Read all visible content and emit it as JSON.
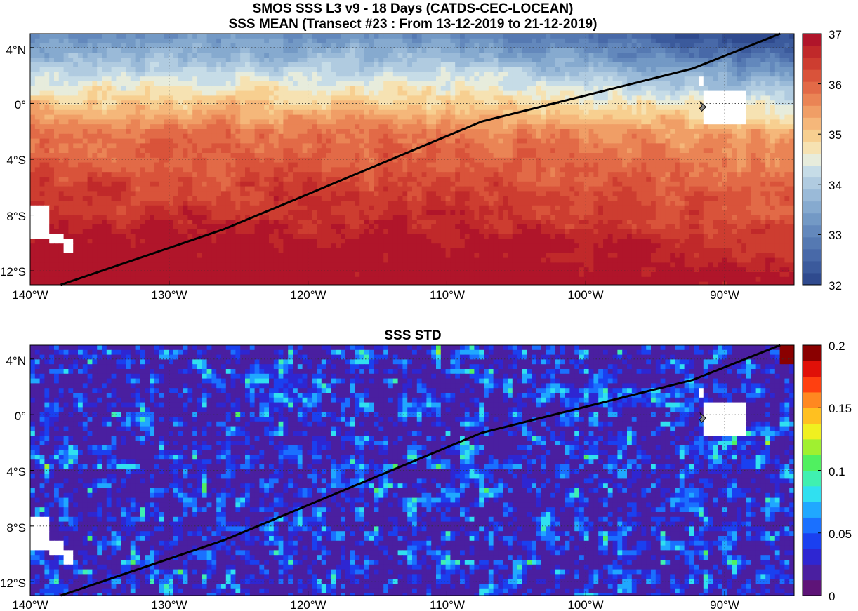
{
  "chart_data": [
    {
      "type": "heatmap",
      "title": "SMOS SSS L3 v9 - 18 Days (CATDS-CEC-LOCEAN)",
      "subtitle": "SSS MEAN (Transect #23 : From 13-12-2019 to 21-12-2019)",
      "xlim": [
        -140,
        -85
      ],
      "ylim": [
        -13,
        5
      ],
      "x_ticks": [
        -140,
        -130,
        -120,
        -110,
        -100,
        -90
      ],
      "x_tick_labels": [
        "140°W",
        "130°W",
        "120°W",
        "110°W",
        "100°W",
        "90°W"
      ],
      "y_ticks": [
        4,
        0,
        -4,
        -8,
        -12
      ],
      "y_tick_labels": [
        "4°N",
        "0°",
        "4°S",
        "8°S",
        "12°S"
      ],
      "grid": true,
      "colorbar": {
        "min": 32,
        "max": 37,
        "ticks": [
          32,
          33,
          34,
          35,
          36,
          37
        ],
        "tick_labels": [
          "32",
          "33",
          "34",
          "35",
          "36",
          "37"
        ],
        "colors": [
          "#2f4a8e",
          "#3b5a9c",
          "#4869a8",
          "#5579b2",
          "#6388bc",
          "#7399c5",
          "#86aacf",
          "#9abad8",
          "#b0cbe0",
          "#c6dce7",
          "#e7ecdc",
          "#f6e2b2",
          "#f7cf90",
          "#f5b77a",
          "#f09e66",
          "#ea8455",
          "#e26a47",
          "#d9533a",
          "#cd3d30",
          "#c0292a",
          "#b0152a"
        ]
      },
      "transect": [
        [
          -137.8,
          -13
        ],
        [
          -126,
          -9
        ],
        [
          -107.5,
          -1.3
        ],
        [
          -92.3,
          2.5
        ],
        [
          -86,
          5
        ]
      ]
    },
    {
      "type": "heatmap",
      "title": "SSS STD",
      "xlim": [
        -140,
        -85
      ],
      "ylim": [
        -13,
        5
      ],
      "x_ticks": [
        -140,
        -130,
        -120,
        -110,
        -100,
        -90
      ],
      "x_tick_labels": [
        "140°W",
        "130°W",
        "120°W",
        "110°W",
        "100°W",
        "90°W"
      ],
      "y_ticks": [
        4,
        0,
        -4,
        -8,
        -12
      ],
      "y_tick_labels": [
        "4°N",
        "0°",
        "4°S",
        "8°S",
        "12°S"
      ],
      "grid": true,
      "colorbar": {
        "min": 0,
        "max": 0.2,
        "ticks": [
          0,
          0.05,
          0.1,
          0.15,
          0.2
        ],
        "tick_labels": [
          "0",
          "0.05",
          "0.1",
          "0.15",
          "0.2"
        ],
        "colors": [
          "#5e1478",
          "#4a1fa0",
          "#2e26d2",
          "#1a40f0",
          "#1a70ff",
          "#20a8ff",
          "#30e0f0",
          "#40f0b0",
          "#50f060",
          "#a0f030",
          "#f0f020",
          "#ffc020",
          "#ff8820",
          "#ff4010",
          "#e01008",
          "#8a0000"
        ]
      },
      "transect": [
        [
          -137.8,
          -13
        ],
        [
          -126,
          -9
        ],
        [
          -107.5,
          -1.3
        ],
        [
          -92.3,
          2.5
        ],
        [
          -86,
          5
        ]
      ]
    }
  ]
}
